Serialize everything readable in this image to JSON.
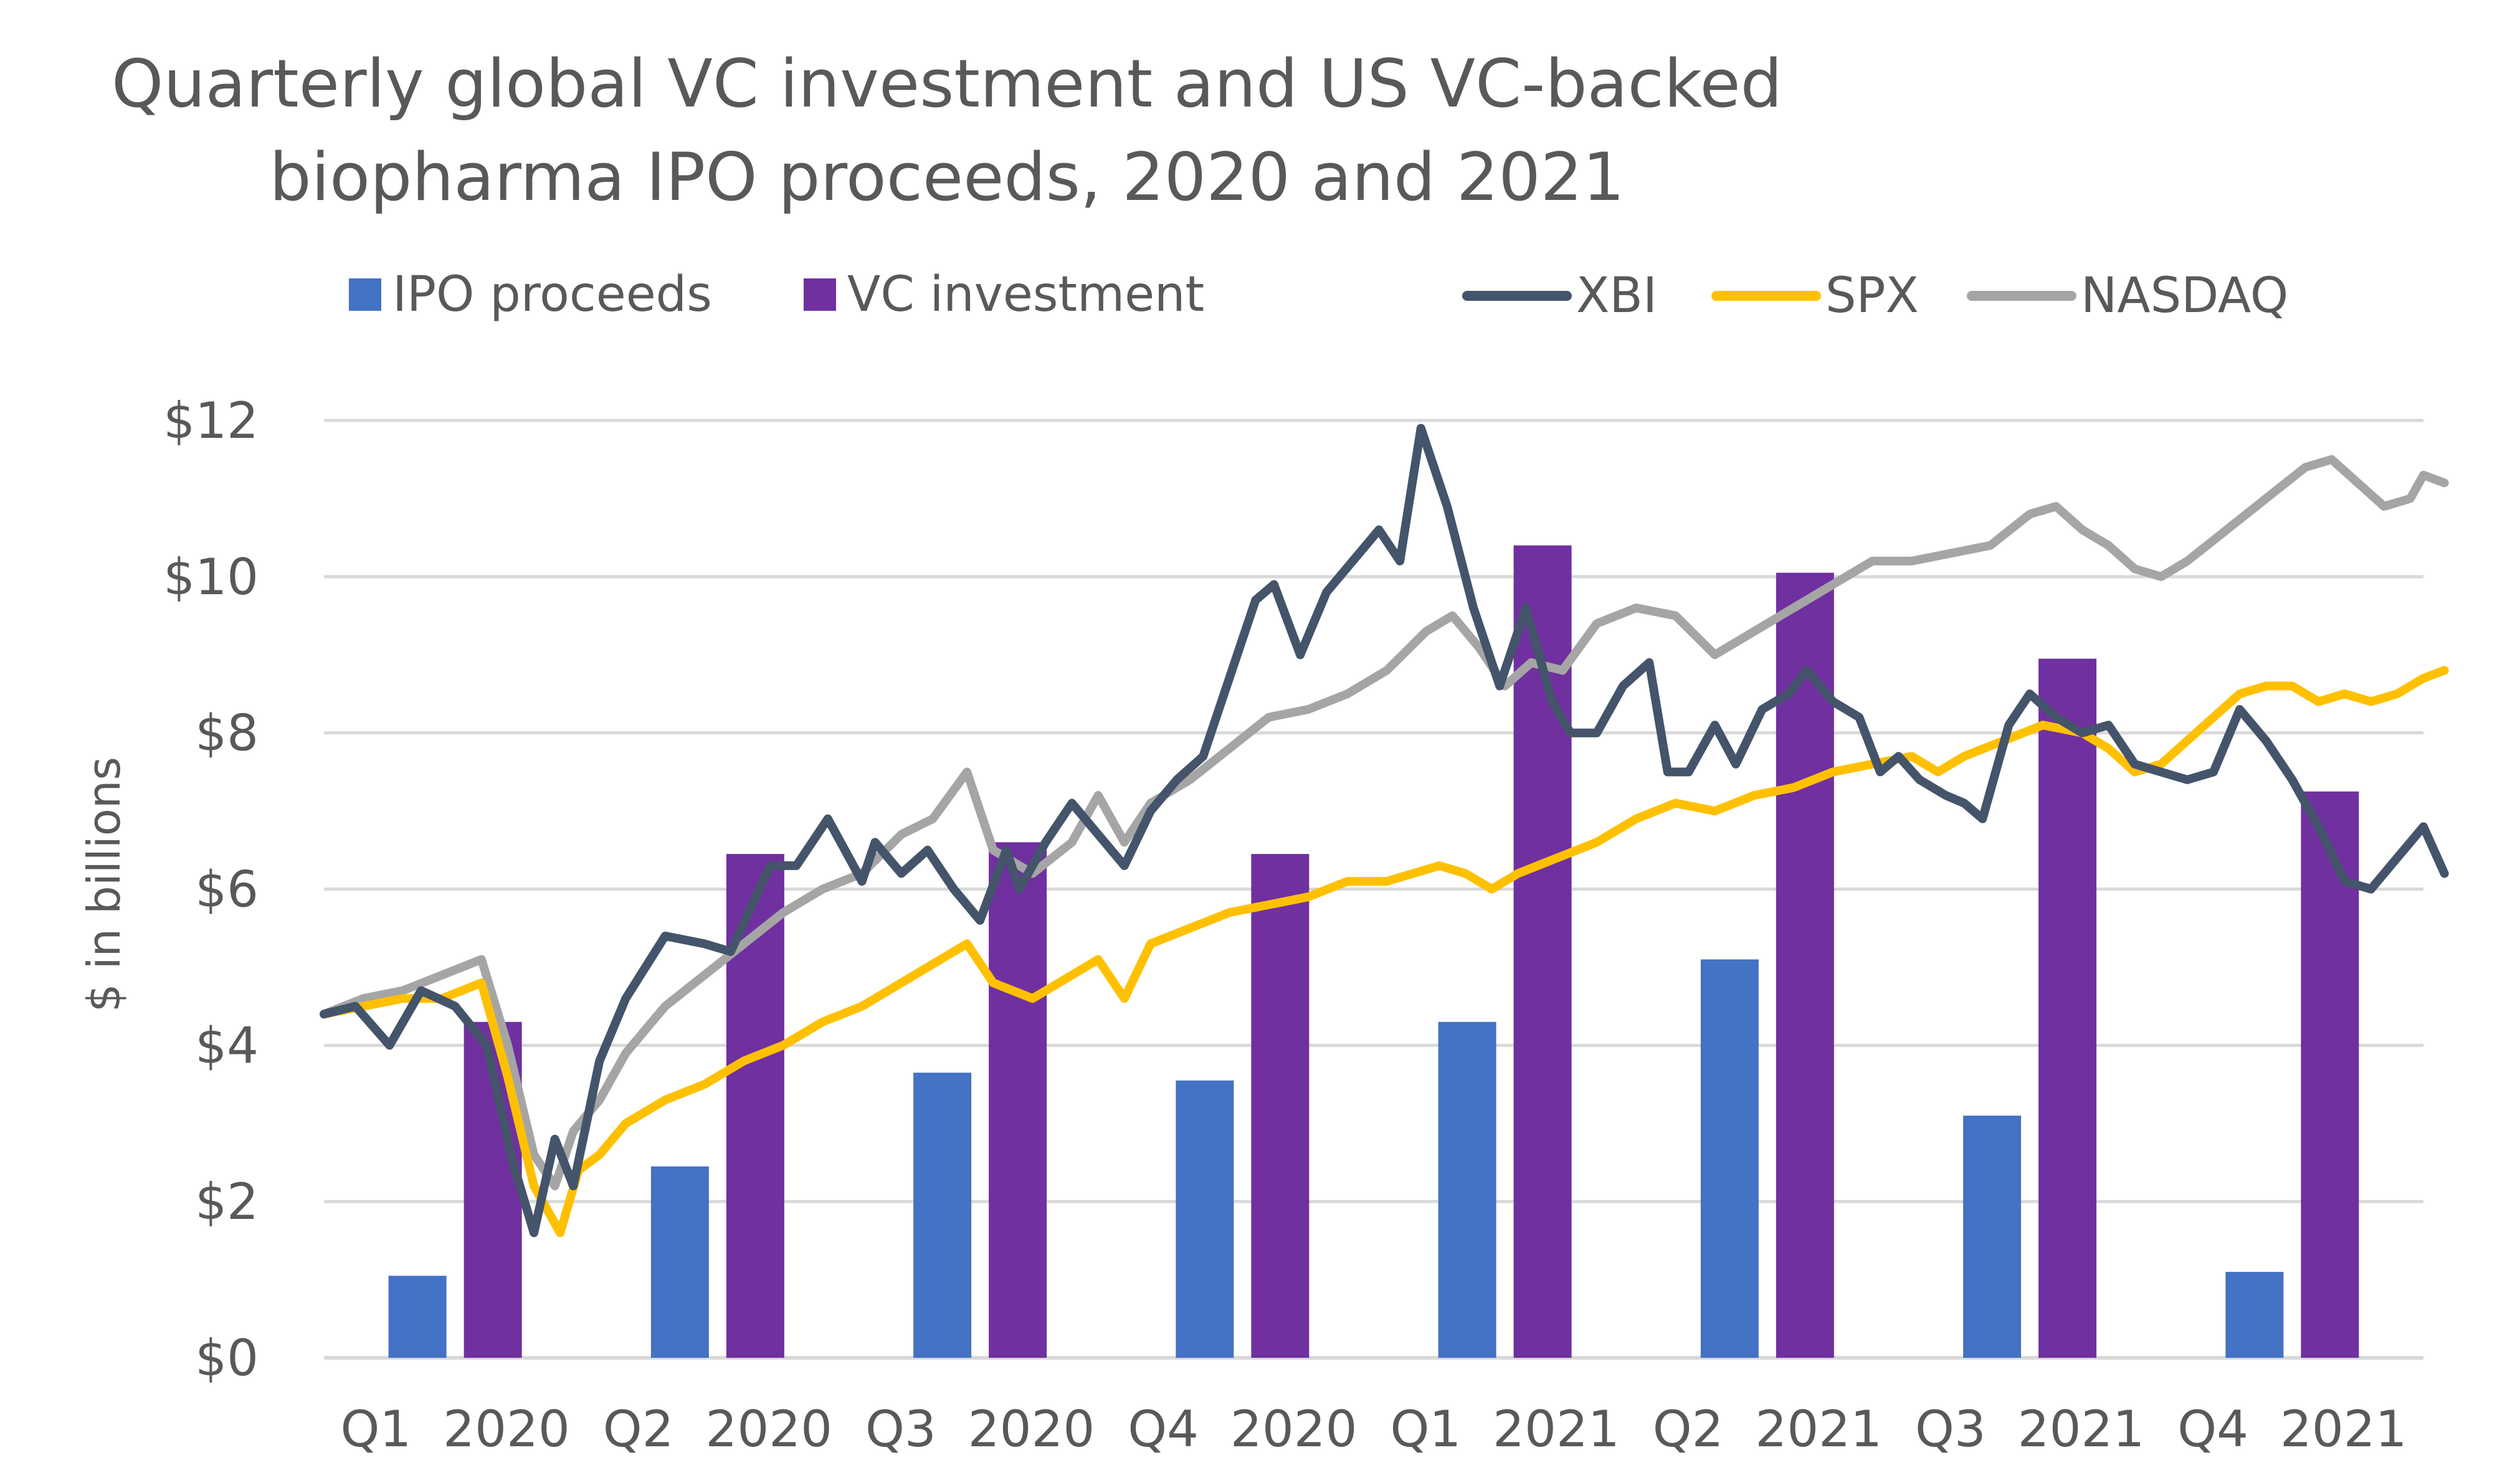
{
  "chart_data": {
    "type": "bar+line",
    "title": [
      "Quarterly global VC investment and US VC-backed",
      "biopharma IPO proceeds, 2020 and 2021"
    ],
    "ylabel": "$ in billions",
    "ylim": [
      0,
      12
    ],
    "yticks": [
      "$0",
      "$2",
      "$4",
      "$6",
      "$8",
      "$10",
      "$12"
    ],
    "grid": "horizontal",
    "legend_position": "top",
    "categories": [
      "Q1  2020",
      "Q2  2020",
      "Q3  2020",
      "Q4  2020",
      "Q1  2021",
      "Q2  2021",
      "Q3  2021",
      "Q4  2021"
    ],
    "bar_series": [
      {
        "name": "IPO proceeds",
        "color": "#4472C4",
        "values": [
          1.05,
          2.45,
          3.65,
          3.55,
          4.3,
          5.1,
          3.1,
          1.1
        ]
      },
      {
        "name": "VC investment",
        "color": "#7030A0",
        "values": [
          4.3,
          6.45,
          6.6,
          6.45,
          10.4,
          10.05,
          8.95,
          7.25
        ]
      }
    ],
    "line_series": [
      {
        "name": "XBI",
        "color": "#44546A",
        "points": [
          [
            0.0,
            4.4
          ],
          [
            0.12,
            4.5
          ],
          [
            0.25,
            4.0
          ],
          [
            0.37,
            4.7
          ],
          [
            0.5,
            4.5
          ],
          [
            0.62,
            4.0
          ],
          [
            0.72,
            2.5
          ],
          [
            0.8,
            1.6
          ],
          [
            0.88,
            2.8
          ],
          [
            0.95,
            2.2
          ],
          [
            1.05,
            3.8
          ],
          [
            1.15,
            4.6
          ],
          [
            1.3,
            5.4
          ],
          [
            1.45,
            5.3
          ],
          [
            1.55,
            5.2
          ],
          [
            1.7,
            6.3
          ],
          [
            1.8,
            6.3
          ],
          [
            1.92,
            6.9
          ],
          [
            2.05,
            6.1
          ],
          [
            2.1,
            6.6
          ],
          [
            2.2,
            6.2
          ],
          [
            2.3,
            6.5
          ],
          [
            2.4,
            6.0
          ],
          [
            2.5,
            5.6
          ],
          [
            2.6,
            6.5
          ],
          [
            2.65,
            6.0
          ],
          [
            2.75,
            6.6
          ],
          [
            2.85,
            7.1
          ],
          [
            2.95,
            6.7
          ],
          [
            3.05,
            6.3
          ],
          [
            3.15,
            7.0
          ],
          [
            3.25,
            7.4
          ],
          [
            3.35,
            7.7
          ],
          [
            3.45,
            8.7
          ],
          [
            3.55,
            9.7
          ],
          [
            3.62,
            9.9
          ],
          [
            3.72,
            9.0
          ],
          [
            3.82,
            9.8
          ],
          [
            3.92,
            10.2
          ],
          [
            4.02,
            10.6
          ],
          [
            4.1,
            10.2
          ],
          [
            4.18,
            11.9
          ],
          [
            4.28,
            10.9
          ],
          [
            4.38,
            9.6
          ],
          [
            4.48,
            8.6
          ],
          [
            4.58,
            9.6
          ],
          [
            4.68,
            8.4
          ],
          [
            4.75,
            8.0
          ],
          [
            4.85,
            8.0
          ],
          [
            4.95,
            8.6
          ],
          [
            5.05,
            8.9
          ],
          [
            5.12,
            7.5
          ],
          [
            5.2,
            7.5
          ],
          [
            5.3,
            8.1
          ],
          [
            5.38,
            7.6
          ],
          [
            5.48,
            8.3
          ],
          [
            5.58,
            8.5
          ],
          [
            5.65,
            8.8
          ],
          [
            5.75,
            8.4
          ],
          [
            5.85,
            8.2
          ],
          [
            5.93,
            7.5
          ],
          [
            6.0,
            7.7
          ],
          [
            6.08,
            7.4
          ],
          [
            6.18,
            7.2
          ],
          [
            6.25,
            7.1
          ],
          [
            6.32,
            6.9
          ],
          [
            6.42,
            8.1
          ],
          [
            6.5,
            8.5
          ],
          [
            6.6,
            8.2
          ],
          [
            6.7,
            8.0
          ],
          [
            6.8,
            8.1
          ],
          [
            6.9,
            7.6
          ],
          [
            7.0,
            7.5
          ],
          [
            7.1,
            7.4
          ],
          [
            7.2,
            7.5
          ],
          [
            7.3,
            8.3
          ],
          [
            7.4,
            7.9
          ],
          [
            7.5,
            7.4
          ],
          [
            7.6,
            6.8
          ],
          [
            7.7,
            6.1
          ],
          [
            7.8,
            6.0
          ],
          [
            7.9,
            6.4
          ],
          [
            8.0,
            6.8
          ],
          [
            8.08,
            6.2
          ]
        ]
      },
      {
        "name": "SPX",
        "color": "#FFC000",
        "points": [
          [
            0.0,
            4.4
          ],
          [
            0.15,
            4.5
          ],
          [
            0.3,
            4.6
          ],
          [
            0.45,
            4.6
          ],
          [
            0.6,
            4.8
          ],
          [
            0.7,
            3.6
          ],
          [
            0.8,
            2.2
          ],
          [
            0.9,
            1.6
          ],
          [
            0.97,
            2.4
          ],
          [
            1.05,
            2.6
          ],
          [
            1.15,
            3.0
          ],
          [
            1.3,
            3.3
          ],
          [
            1.45,
            3.5
          ],
          [
            1.6,
            3.8
          ],
          [
            1.75,
            4.0
          ],
          [
            1.9,
            4.3
          ],
          [
            2.05,
            4.5
          ],
          [
            2.2,
            4.8
          ],
          [
            2.35,
            5.1
          ],
          [
            2.45,
            5.3
          ],
          [
            2.55,
            4.8
          ],
          [
            2.7,
            4.6
          ],
          [
            2.85,
            4.9
          ],
          [
            2.95,
            5.1
          ],
          [
            3.05,
            4.6
          ],
          [
            3.15,
            5.3
          ],
          [
            3.3,
            5.5
          ],
          [
            3.45,
            5.7
          ],
          [
            3.6,
            5.8
          ],
          [
            3.75,
            5.9
          ],
          [
            3.9,
            6.1
          ],
          [
            4.05,
            6.1
          ],
          [
            4.15,
            6.2
          ],
          [
            4.25,
            6.3
          ],
          [
            4.35,
            6.2
          ],
          [
            4.45,
            6.0
          ],
          [
            4.55,
            6.2
          ],
          [
            4.7,
            6.4
          ],
          [
            4.85,
            6.6
          ],
          [
            5.0,
            6.9
          ],
          [
            5.15,
            7.1
          ],
          [
            5.3,
            7.0
          ],
          [
            5.45,
            7.2
          ],
          [
            5.6,
            7.3
          ],
          [
            5.75,
            7.5
          ],
          [
            5.9,
            7.6
          ],
          [
            6.05,
            7.7
          ],
          [
            6.15,
            7.5
          ],
          [
            6.25,
            7.7
          ],
          [
            6.4,
            7.9
          ],
          [
            6.55,
            8.1
          ],
          [
            6.7,
            8.0
          ],
          [
            6.8,
            7.8
          ],
          [
            6.9,
            7.5
          ],
          [
            7.0,
            7.6
          ],
          [
            7.1,
            7.9
          ],
          [
            7.2,
            8.2
          ],
          [
            7.3,
            8.5
          ],
          [
            7.4,
            8.6
          ],
          [
            7.5,
            8.6
          ],
          [
            7.6,
            8.4
          ],
          [
            7.7,
            8.5
          ],
          [
            7.8,
            8.4
          ],
          [
            7.9,
            8.5
          ],
          [
            8.0,
            8.7
          ],
          [
            8.08,
            8.8
          ]
        ]
      },
      {
        "name": "NASDAQ",
        "color": "#A5A5A5",
        "points": [
          [
            0.0,
            4.4
          ],
          [
            0.15,
            4.6
          ],
          [
            0.3,
            4.7
          ],
          [
            0.45,
            4.9
          ],
          [
            0.6,
            5.1
          ],
          [
            0.7,
            4.0
          ],
          [
            0.8,
            2.6
          ],
          [
            0.88,
            2.2
          ],
          [
            0.95,
            2.9
          ],
          [
            1.05,
            3.3
          ],
          [
            1.15,
            3.9
          ],
          [
            1.3,
            4.5
          ],
          [
            1.45,
            4.9
          ],
          [
            1.6,
            5.3
          ],
          [
            1.75,
            5.7
          ],
          [
            1.9,
            6.0
          ],
          [
            2.05,
            6.2
          ],
          [
            2.2,
            6.7
          ],
          [
            2.32,
            6.9
          ],
          [
            2.45,
            7.5
          ],
          [
            2.55,
            6.5
          ],
          [
            2.7,
            6.2
          ],
          [
            2.85,
            6.6
          ],
          [
            2.95,
            7.2
          ],
          [
            3.05,
            6.6
          ],
          [
            3.15,
            7.1
          ],
          [
            3.3,
            7.4
          ],
          [
            3.45,
            7.8
          ],
          [
            3.6,
            8.2
          ],
          [
            3.75,
            8.3
          ],
          [
            3.9,
            8.5
          ],
          [
            4.05,
            8.8
          ],
          [
            4.2,
            9.3
          ],
          [
            4.3,
            9.5
          ],
          [
            4.4,
            9.1
          ],
          [
            4.5,
            8.6
          ],
          [
            4.6,
            8.9
          ],
          [
            4.72,
            8.8
          ],
          [
            4.85,
            9.4
          ],
          [
            5.0,
            9.6
          ],
          [
            5.15,
            9.5
          ],
          [
            5.3,
            9.0
          ],
          [
            5.45,
            9.3
          ],
          [
            5.6,
            9.6
          ],
          [
            5.75,
            9.9
          ],
          [
            5.9,
            10.2
          ],
          [
            6.05,
            10.2
          ],
          [
            6.2,
            10.3
          ],
          [
            6.35,
            10.4
          ],
          [
            6.5,
            10.8
          ],
          [
            6.6,
            10.9
          ],
          [
            6.7,
            10.6
          ],
          [
            6.8,
            10.4
          ],
          [
            6.9,
            10.1
          ],
          [
            7.0,
            10.0
          ],
          [
            7.1,
            10.2
          ],
          [
            7.25,
            10.6
          ],
          [
            7.4,
            11.0
          ],
          [
            7.55,
            11.4
          ],
          [
            7.65,
            11.5
          ],
          [
            7.75,
            11.2
          ],
          [
            7.85,
            10.9
          ],
          [
            7.95,
            11.0
          ],
          [
            8.0,
            11.3
          ],
          [
            8.08,
            11.2
          ]
        ]
      }
    ]
  }
}
